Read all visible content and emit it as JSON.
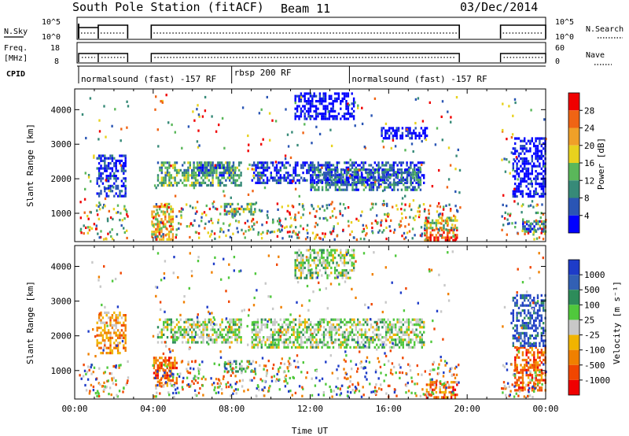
{
  "header": {
    "station": "South Pole Station (fitACF)",
    "beam": "Beam 11",
    "date": "03/Dec/2014"
  },
  "summary_panels": {
    "nsky_label": "N.Sky",
    "nsearch_label": "N.Search",
    "left_ticks": [
      "10^5",
      "10^0"
    ],
    "right_ticks": [
      "10^5",
      "10^0"
    ],
    "freq_label_1": "Freq.",
    "freq_label_2": "[MHz]",
    "freq_ticks": [
      "18",
      "8"
    ],
    "nave_label": "Nave",
    "nave_ticks": [
      "60",
      "0"
    ],
    "cpid_label": "CPID",
    "cpid_segments": [
      {
        "name": "normalsound (fast) -157 RF",
        "start_hour": 0.2,
        "end_hour": 8.0
      },
      {
        "name": "rbsp 200 RF",
        "start_hour": 8.0,
        "end_hour": 14.0
      },
      {
        "name": "normalsound (fast) -157 RF",
        "start_hour": 14.0,
        "end_hour": 24.0
      }
    ],
    "data_segments_hours": [
      [
        0.2,
        1.2
      ],
      [
        1.2,
        2.7
      ],
      [
        3.9,
        19.6
      ],
      [
        21.7,
        24.0
      ]
    ]
  },
  "chart_data": [
    {
      "type": "heatmap",
      "panel": "power",
      "ylabel": "Slant Range [km]",
      "ylim": [
        180,
        4600
      ],
      "yticks": [
        "1000",
        "2000",
        "3000",
        "4000"
      ],
      "xlim": [
        0,
        24
      ],
      "colorbar": {
        "label": "Power [dB]",
        "ticks": [
          "4",
          "8",
          "12",
          "16",
          "20",
          "24",
          "28"
        ],
        "colors": [
          "#0000ff",
          "#2a55b4",
          "#378a78",
          "#5ab75a",
          "#e8d21e",
          "#f0a028",
          "#f06414",
          "#f00000"
        ]
      },
      "echo_regions": [
        {
          "t0": 1.1,
          "t1": 2.6,
          "r0": 1500,
          "r1": 2700,
          "level": 1
        },
        {
          "t0": 4.2,
          "t1": 8.5,
          "r0": 1800,
          "r1": 2500,
          "level": 3
        },
        {
          "t0": 6.2,
          "t1": 8.2,
          "r0": 2100,
          "r1": 2500,
          "level": 2
        },
        {
          "t0": 7.6,
          "t1": 9.2,
          "r0": 1000,
          "r1": 1300,
          "level": 3
        },
        {
          "t0": 9.0,
          "t1": 17.8,
          "r0": 1900,
          "r1": 2500,
          "level": 1
        },
        {
          "t0": 12.0,
          "t1": 17.6,
          "r0": 1700,
          "r1": 2300,
          "level": 2
        },
        {
          "t0": 11.2,
          "t1": 14.2,
          "r0": 3700,
          "r1": 4500,
          "level": 0
        },
        {
          "t0": 15.6,
          "t1": 18.0,
          "r0": 3200,
          "r1": 3500,
          "level": 0
        },
        {
          "t0": 17.8,
          "t1": 19.5,
          "r0": 250,
          "r1": 550,
          "level": 7
        },
        {
          "t0": 17.8,
          "t1": 19.5,
          "r0": 550,
          "r1": 900,
          "level": 4
        },
        {
          "t0": 3.9,
          "t1": 5.0,
          "r0": 250,
          "r1": 1300,
          "level": 5
        },
        {
          "t0": 22.3,
          "t1": 24.0,
          "r0": 1500,
          "r1": 3200,
          "level": 0
        },
        {
          "t0": 22.8,
          "t1": 24.0,
          "r0": 500,
          "r1": 800,
          "level": 2
        }
      ]
    },
    {
      "type": "heatmap",
      "panel": "velocity",
      "ylabel": "Slant Range [km]",
      "ylim": [
        180,
        4600
      ],
      "yticks": [
        "1000",
        "2000",
        "3000",
        "4000"
      ],
      "xlim": [
        0,
        24
      ],
      "xticks": [
        "00:00",
        "04:00",
        "08:00",
        "12:00",
        "16:00",
        "20:00",
        "00:00"
      ],
      "xlabel": "Time UT",
      "colorbar": {
        "label": "Velocity [m s⁻¹]",
        "ticks": [
          "1000",
          "500",
          "100",
          "25",
          "-25",
          "-100",
          "-500",
          "-1000"
        ],
        "colors": [
          "#1e3cc8",
          "#3260b4",
          "#2d8c5a",
          "#50c83c",
          "#c8c8c8",
          "#f0b400",
          "#f08000",
          "#f04600",
          "#f00000"
        ]
      },
      "echo_regions": [
        {
          "t0": 1.1,
          "t1": 2.6,
          "r0": 1500,
          "r1": 2700,
          "level": 6
        },
        {
          "t0": 4.2,
          "t1": 8.5,
          "r0": 1800,
          "r1": 2500,
          "level": 4
        },
        {
          "t0": 4.0,
          "t1": 5.2,
          "r0": 600,
          "r1": 1400,
          "level": 7
        },
        {
          "t0": 7.6,
          "t1": 9.2,
          "r0": 1000,
          "r1": 1300,
          "level": 3
        },
        {
          "t0": 9.0,
          "t1": 17.8,
          "r0": 1700,
          "r1": 2500,
          "level": 4
        },
        {
          "t0": 11.2,
          "t1": 14.2,
          "r0": 3700,
          "r1": 4500,
          "level": 4
        },
        {
          "t0": 17.8,
          "t1": 19.5,
          "r0": 250,
          "r1": 700,
          "level": 7
        },
        {
          "t0": 22.4,
          "t1": 24.0,
          "r0": 400,
          "r1": 1700,
          "level": 7
        },
        {
          "t0": 22.3,
          "t1": 24.0,
          "r0": 1700,
          "r1": 3200,
          "level": 1
        }
      ]
    }
  ]
}
